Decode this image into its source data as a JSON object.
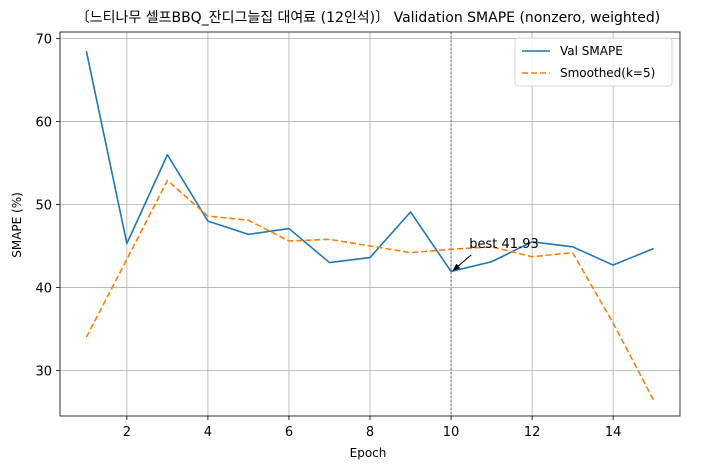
{
  "chart_data": {
    "type": "line",
    "title": "〔느티나무 셀프BBQ_잔디그늘집 대여료 (12인석)〕 Validation SMAPE (nonzero, weighted)",
    "xlabel": "Epoch",
    "ylabel": "SMAPE (%)",
    "x": [
      1,
      2,
      3,
      4,
      5,
      6,
      7,
      8,
      9,
      10,
      11,
      12,
      13,
      14,
      15
    ],
    "xlim": [
      0.35,
      15.65
    ],
    "ylim": [
      24.5,
      70.8
    ],
    "xticks": [
      2,
      4,
      6,
      8,
      10,
      12,
      14
    ],
    "yticks": [
      30,
      40,
      50,
      60,
      70
    ],
    "grid": true,
    "legend_position": "top-right",
    "series": [
      {
        "name": "Val SMAPE",
        "style": "solid",
        "color": "#1f77b4",
        "values": [
          68.5,
          45.3,
          56.0,
          48.0,
          46.4,
          47.1,
          43.0,
          43.6,
          49.1,
          41.93,
          43.1,
          45.5,
          44.9,
          42.7,
          44.7
        ]
      },
      {
        "name": "Smoothed(k=5)",
        "style": "dashed",
        "color": "#ff7f0e",
        "values": [
          34.0,
          43.4,
          52.9,
          48.6,
          48.1,
          45.6,
          45.8,
          45.0,
          44.2,
          44.6,
          44.9,
          43.7,
          44.2,
          35.7,
          26.4
        ]
      }
    ],
    "vline": {
      "x": 10,
      "style": "dotted",
      "color": "#808080"
    },
    "annotation": {
      "text": "best 41.93",
      "x": 10,
      "y": 41.93,
      "text_x": 10.45,
      "text_y": 43.8
    }
  }
}
